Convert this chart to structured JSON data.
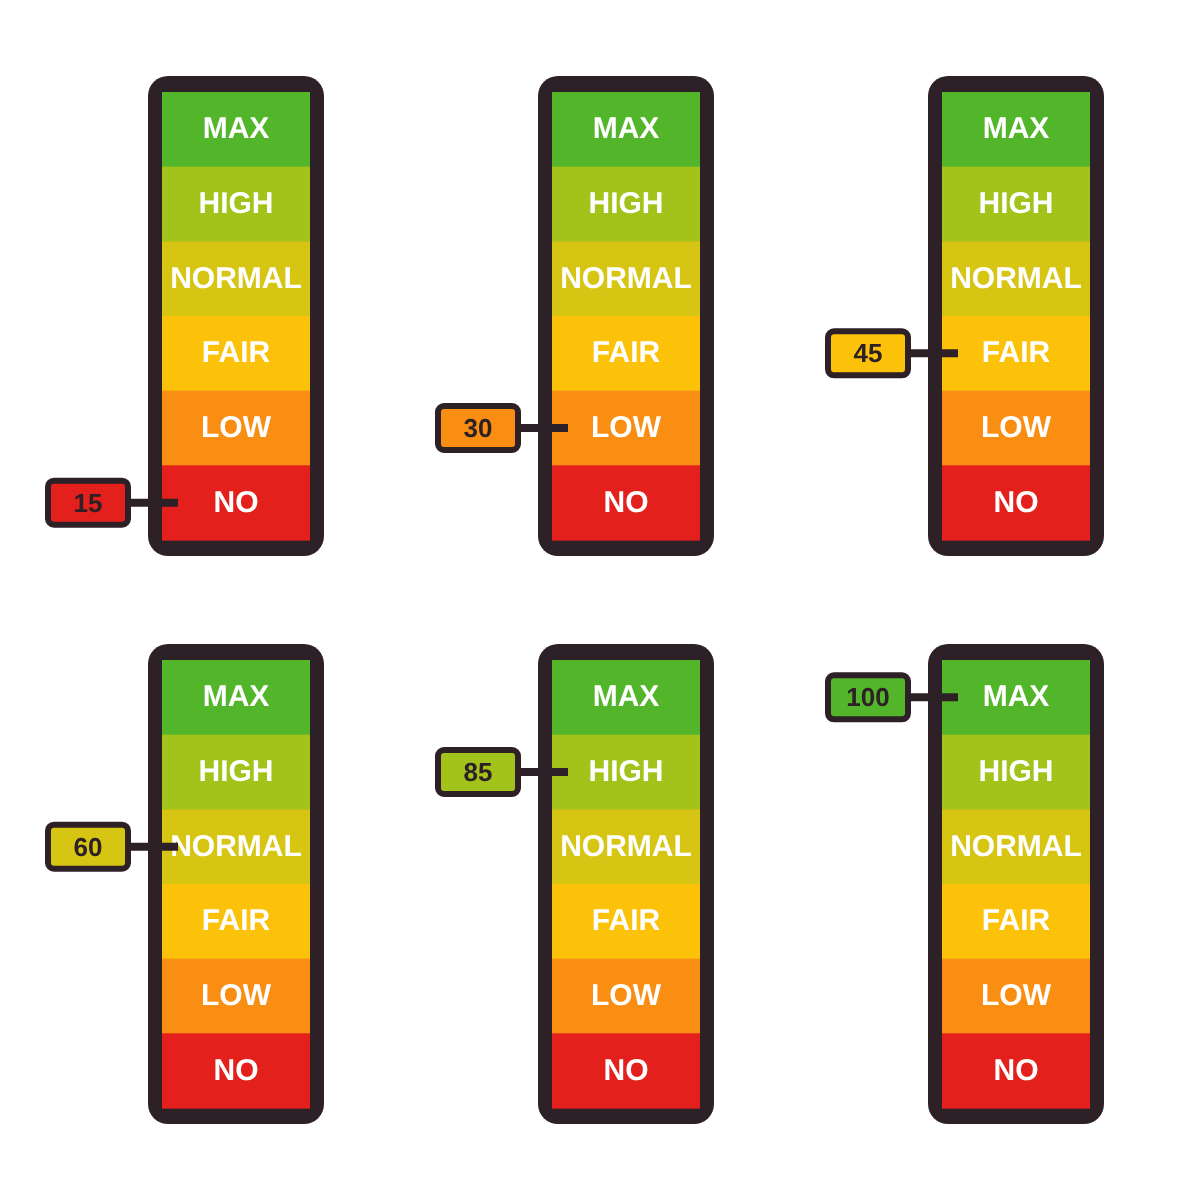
{
  "chart_data": [
    {
      "type": "other",
      "categories": [
        "MAX",
        "HIGH",
        "NORMAL",
        "FAIR",
        "LOW",
        "NO"
      ],
      "colors": [
        "#52b52a",
        "#a3c21a",
        "#d6c512",
        "#fcc20a",
        "#f98e12",
        "#e3201b"
      ],
      "values": [
        null,
        null,
        null,
        null,
        null,
        15
      ],
      "data_labels": true
    },
    {
      "type": "other",
      "categories": [
        "MAX",
        "HIGH",
        "NORMAL",
        "FAIR",
        "LOW",
        "NO"
      ],
      "colors": [
        "#52b52a",
        "#a3c21a",
        "#d6c512",
        "#fcc20a",
        "#f98e12",
        "#e3201b"
      ],
      "values": [
        null,
        null,
        null,
        null,
        30,
        null
      ],
      "data_labels": true
    },
    {
      "type": "other",
      "categories": [
        "MAX",
        "HIGH",
        "NORMAL",
        "FAIR",
        "LOW",
        "NO"
      ],
      "colors": [
        "#52b52a",
        "#a3c21a",
        "#d6c512",
        "#fcc20a",
        "#f98e12",
        "#e3201b"
      ],
      "values": [
        null,
        null,
        null,
        45,
        null,
        null
      ],
      "data_labels": true
    },
    {
      "type": "other",
      "categories": [
        "MAX",
        "HIGH",
        "NORMAL",
        "FAIR",
        "LOW",
        "NO"
      ],
      "colors": [
        "#52b52a",
        "#a3c21a",
        "#d6c512",
        "#fcc20a",
        "#f98e12",
        "#e3201b"
      ],
      "values": [
        null,
        null,
        60,
        null,
        null,
        null
      ],
      "data_labels": true
    },
    {
      "type": "other",
      "categories": [
        "MAX",
        "HIGH",
        "NORMAL",
        "FAIR",
        "LOW",
        "NO"
      ],
      "colors": [
        "#52b52a",
        "#a3c21a",
        "#d6c512",
        "#fcc20a",
        "#f98e12",
        "#e3201b"
      ],
      "values": [
        null,
        85,
        null,
        null,
        null,
        null
      ],
      "data_labels": true
    },
    {
      "type": "other",
      "categories": [
        "MAX",
        "HIGH",
        "NORMAL",
        "FAIR",
        "LOW",
        "NO"
      ],
      "colors": [
        "#52b52a",
        "#a3c21a",
        "#d6c512",
        "#fcc20a",
        "#f98e12",
        "#e3201b"
      ],
      "values": [
        100,
        null,
        null,
        null,
        null,
        null
      ],
      "data_labels": true
    }
  ]
}
